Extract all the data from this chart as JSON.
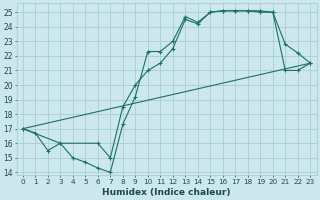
{
  "xlabel": "Humidex (Indice chaleur)",
  "bg_color": "#cce8ed",
  "grid_color": "#a8cdd4",
  "line_color": "#1a6e6e",
  "xlim": [
    -0.5,
    23.5
  ],
  "ylim": [
    13.8,
    25.6
  ],
  "yticks": [
    14,
    15,
    16,
    17,
    18,
    19,
    20,
    21,
    22,
    23,
    24,
    25
  ],
  "xticks": [
    0,
    1,
    2,
    3,
    4,
    5,
    6,
    7,
    8,
    9,
    10,
    11,
    12,
    13,
    14,
    15,
    16,
    17,
    18,
    19,
    20,
    21,
    22,
    23
  ],
  "series1_x": [
    0,
    1,
    2,
    3,
    4,
    5,
    6,
    7,
    8,
    9,
    10,
    11,
    12,
    13,
    14,
    15,
    16,
    17,
    18,
    19,
    20,
    21,
    22,
    23
  ],
  "series1_y": [
    17.0,
    16.7,
    15.5,
    16.0,
    15.0,
    14.7,
    14.3,
    14.0,
    17.3,
    19.2,
    22.3,
    22.3,
    23.0,
    24.7,
    24.3,
    25.0,
    25.1,
    25.1,
    25.1,
    25.0,
    25.0,
    22.8,
    22.2,
    21.5
  ],
  "series2_x": [
    0,
    3,
    6,
    7,
    8,
    9,
    10,
    11,
    12,
    13,
    14,
    15,
    16,
    17,
    18,
    19,
    20,
    21,
    22,
    23
  ],
  "series2_y": [
    17.0,
    16.0,
    16.0,
    15.0,
    18.5,
    20.0,
    21.0,
    21.5,
    22.5,
    24.5,
    24.2,
    25.0,
    25.1,
    25.1,
    25.1,
    25.1,
    25.0,
    21.0,
    21.0,
    21.5
  ],
  "series3_x": [
    0,
    23
  ],
  "series3_y": [
    17.0,
    21.5
  ]
}
